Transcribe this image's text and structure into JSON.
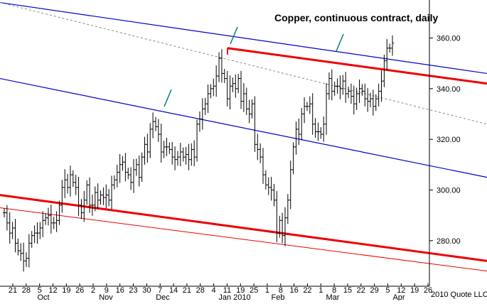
{
  "chart_data": {
    "type": "bar",
    "title": "Copper, continuous contract, daily",
    "credit": "2010 Quote LLC",
    "ylim": [
      262,
      375
    ],
    "y_ticks": [
      "360.00",
      "340.00",
      "320.00",
      "300.00",
      "280.00"
    ],
    "y_tick_values": [
      360,
      340,
      320,
      300,
      280
    ],
    "grid": false,
    "x_day_labels": [
      "21",
      "28",
      "5",
      "12",
      "19",
      "26",
      "2",
      "9",
      "16",
      "23",
      "30",
      "7",
      "14",
      "21",
      "28",
      "4",
      "11",
      "19",
      "25",
      "1",
      "8",
      "16",
      "22",
      "1",
      "8",
      "15",
      "22",
      "29",
      "5",
      "12",
      "19",
      "26"
    ],
    "x_month_labels": [
      "Oct",
      "Nov",
      "Dec",
      "Jan 2010",
      "Feb",
      "Mar",
      "Apr"
    ],
    "series": [
      {
        "values": [
          291,
          287,
          283,
          285,
          279,
          276,
          275,
          272,
          273,
          279,
          282,
          283,
          283,
          285,
          288,
          289,
          290,
          287,
          287,
          288,
          294,
          301,
          304,
          301,
          306,
          303,
          301,
          294,
          291,
          296,
          302,
          294,
          294,
          299,
          296,
          298,
          297,
          298,
          296,
          302,
          304,
          307,
          310,
          311,
          307,
          306,
          303,
          308,
          310,
          305,
          313,
          318,
          315,
          324,
          327,
          325,
          322,
          315,
          317,
          317,
          316,
          313,
          312,
          313,
          315,
          313,
          314,
          312,
          316,
          313,
          326,
          328,
          332,
          334,
          338,
          340,
          341,
          345,
          352,
          346,
          344,
          336,
          341,
          342,
          340,
          344,
          335,
          338,
          332,
          330,
          334,
          318,
          316,
          313,
          306,
          302,
          301,
          300,
          296,
          283,
          288,
          282,
          289,
          296,
          308,
          317,
          324,
          322,
          330,
          333,
          333,
          334,
          326,
          323,
          323,
          322,
          326,
          338,
          344,
          339,
          341,
          341,
          340,
          343,
          338,
          339,
          337,
          334,
          338,
          340,
          339,
          336,
          335,
          336,
          333,
          336,
          339,
          343,
          351,
          356,
          356,
          358
        ]
      }
    ],
    "trendlines": {
      "upper_channel": [
        [
          0,
          374
        ],
        [
          685,
          346
        ]
      ],
      "middle_channel": [
        [
          0,
          344
        ],
        [
          685,
          305
        ]
      ],
      "dashed_midline": [
        [
          0,
          374
        ],
        [
          685,
          326
        ]
      ],
      "red_resistance": [
        [
          320,
          356
        ],
        [
          685,
          342
        ]
      ],
      "red_support_thick": [
        [
          0,
          298
        ],
        [
          685,
          272
        ]
      ],
      "red_support_thin": [
        [
          0,
          293
        ],
        [
          685,
          268
        ]
      ]
    },
    "annotation_ticks": 3,
    "colors": {
      "price_bars": "#000000",
      "channel": "#0000cc",
      "trend_red": "#ee0000",
      "midline": "#888888",
      "tick_marks": "#008080",
      "background": "#ffffff"
    }
  }
}
